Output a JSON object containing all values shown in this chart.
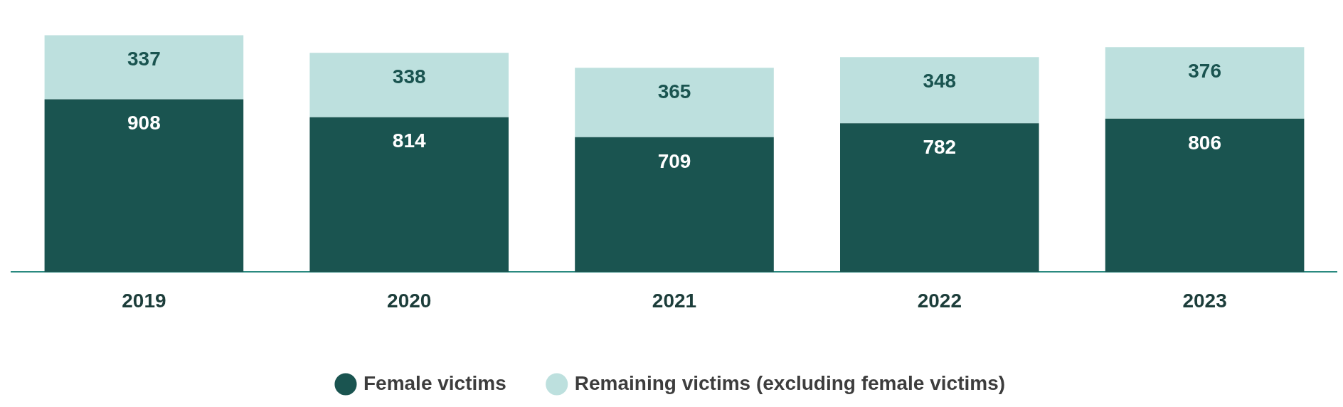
{
  "chart_data": {
    "type": "bar",
    "stacked": true,
    "categories": [
      "2019",
      "2020",
      "2021",
      "2022",
      "2023"
    ],
    "series": [
      {
        "name": "Female victims",
        "color": "#1a5450",
        "values": [
          908,
          814,
          709,
          782,
          806
        ]
      },
      {
        "name": "Remaining victims (excluding female victims)",
        "color": "#bde0de",
        "values": [
          337,
          338,
          365,
          348,
          376
        ]
      }
    ],
    "data_labels": true,
    "legend": "bottom",
    "grid": false
  }
}
